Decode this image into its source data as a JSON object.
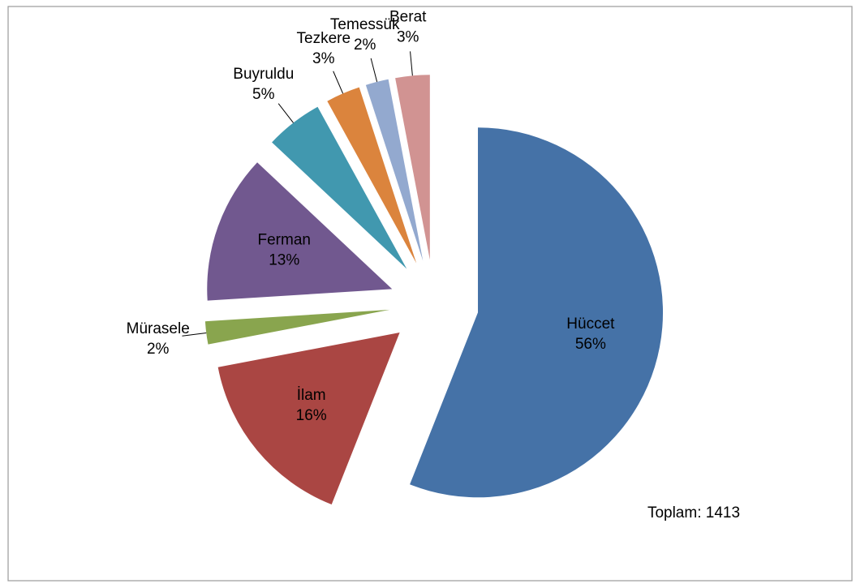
{
  "chart_data": {
    "type": "pie",
    "categories": [
      "Hüccet",
      "İlam",
      "Mürasele",
      "Ferman",
      "Buyruldu",
      "Tezkere",
      "Temessük",
      "Berat"
    ],
    "values": [
      56,
      16,
      2,
      13,
      5,
      3,
      2,
      3
    ],
    "value_labels": [
      "56%",
      "16%",
      "2%",
      "13%",
      "5%",
      "3%",
      "2%",
      "3%"
    ],
    "colors": [
      "#4572a7",
      "#aa4643",
      "#89a54e",
      "#71588f",
      "#4198af",
      "#db843d",
      "#93a9cf",
      "#d19392"
    ],
    "annotation": "Toplam: 1413"
  }
}
